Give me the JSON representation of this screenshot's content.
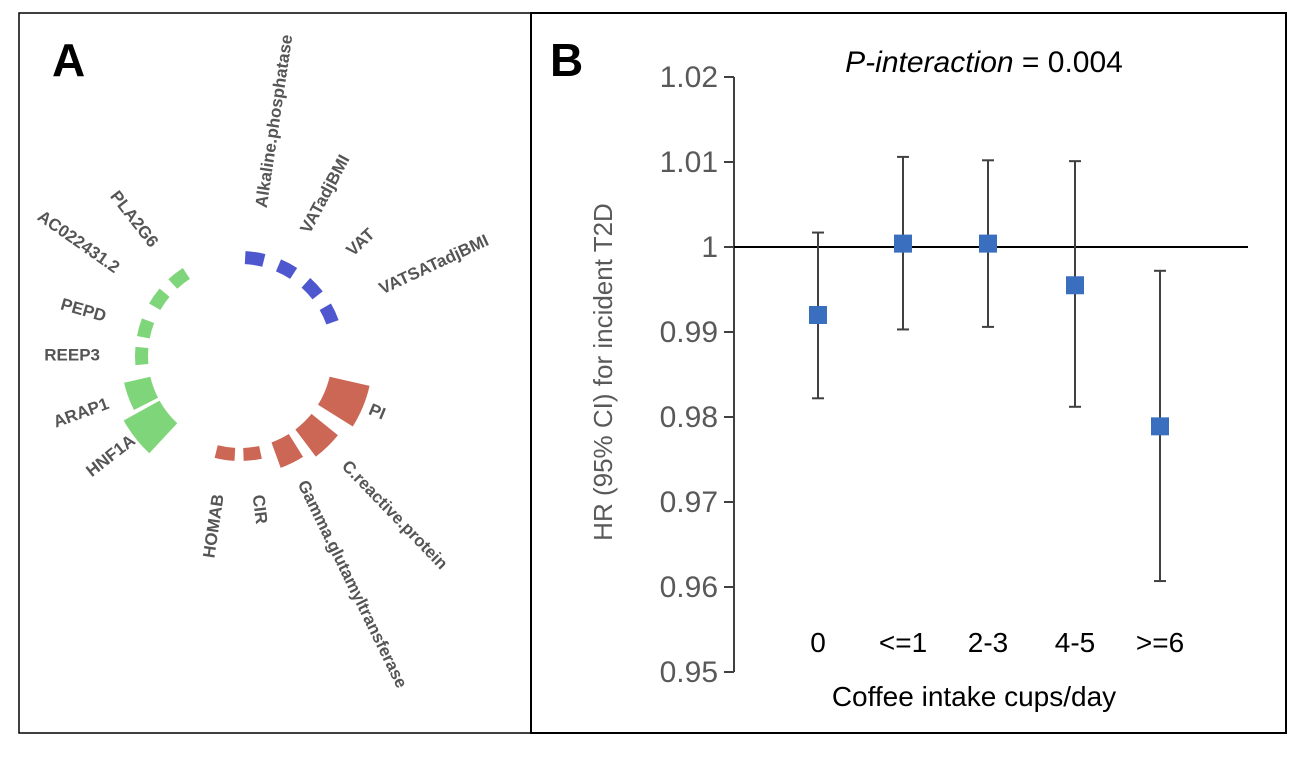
{
  "panel_a": {
    "letter": "A",
    "colors": {
      "green": "#7fd67a",
      "blue": "#4f57cf",
      "red": "#cc6655"
    },
    "segments": [
      {
        "label": "PLA2G6",
        "group": "green",
        "weight": 1
      },
      {
        "label": "AC022431.2",
        "group": "green",
        "weight": 1
      },
      {
        "label": "PEPD",
        "group": "green",
        "weight": 1
      },
      {
        "label": "REEP3",
        "group": "green",
        "weight": 1
      },
      {
        "label": "ARAP1",
        "group": "green",
        "weight": 3
      },
      {
        "label": "HNF1A",
        "group": "green",
        "weight": 5
      },
      {
        "label": "HOMAB",
        "group": "red",
        "weight": 1
      },
      {
        "label": "CIR",
        "group": "red",
        "weight": 1
      },
      {
        "label": "Gamma.glutamyltransferase",
        "group": "red",
        "weight": 3
      },
      {
        "label": "C.reactive.protein",
        "group": "red",
        "weight": 4
      },
      {
        "label": "PI",
        "group": "red",
        "weight": 5
      },
      {
        "label": "VATSATadjBMI",
        "group": "blue",
        "weight": 1
      },
      {
        "label": "VAT",
        "group": "blue",
        "weight": 1
      },
      {
        "label": "VATadjBMI",
        "group": "blue",
        "weight": 1
      },
      {
        "label": "Alkaline.phosphatase",
        "group": "blue",
        "weight": 1
      }
    ]
  },
  "panel_b": {
    "letter": "B"
  },
  "chart_data": {
    "type": "scatter",
    "title_italic": "P-interaction",
    "title_rest": " = 0.004",
    "xlabel": "Coffee intake cups/day",
    "ylabel": "HR (95% CI) for incident T2D",
    "categories": [
      "0",
      "<=1",
      "2-3",
      "4-5",
      ">=6"
    ],
    "hr": [
      0.992,
      1.0004,
      1.0004,
      0.9955,
      0.9789
    ],
    "ci_lower": [
      0.9822,
      0.9903,
      0.9906,
      0.9812,
      0.9607
    ],
    "ci_upper": [
      1.0017,
      1.0106,
      1.0102,
      1.0101,
      0.9972
    ],
    "ylim": [
      0.95,
      1.02
    ],
    "yticks": [
      "0.95",
      "0.96",
      "0.97",
      "0.98",
      "0.99",
      "1",
      "1.01",
      "1.02"
    ],
    "reference_line": 1,
    "marker_color": "#3a6fbf",
    "errorbar_color": "#404040"
  }
}
